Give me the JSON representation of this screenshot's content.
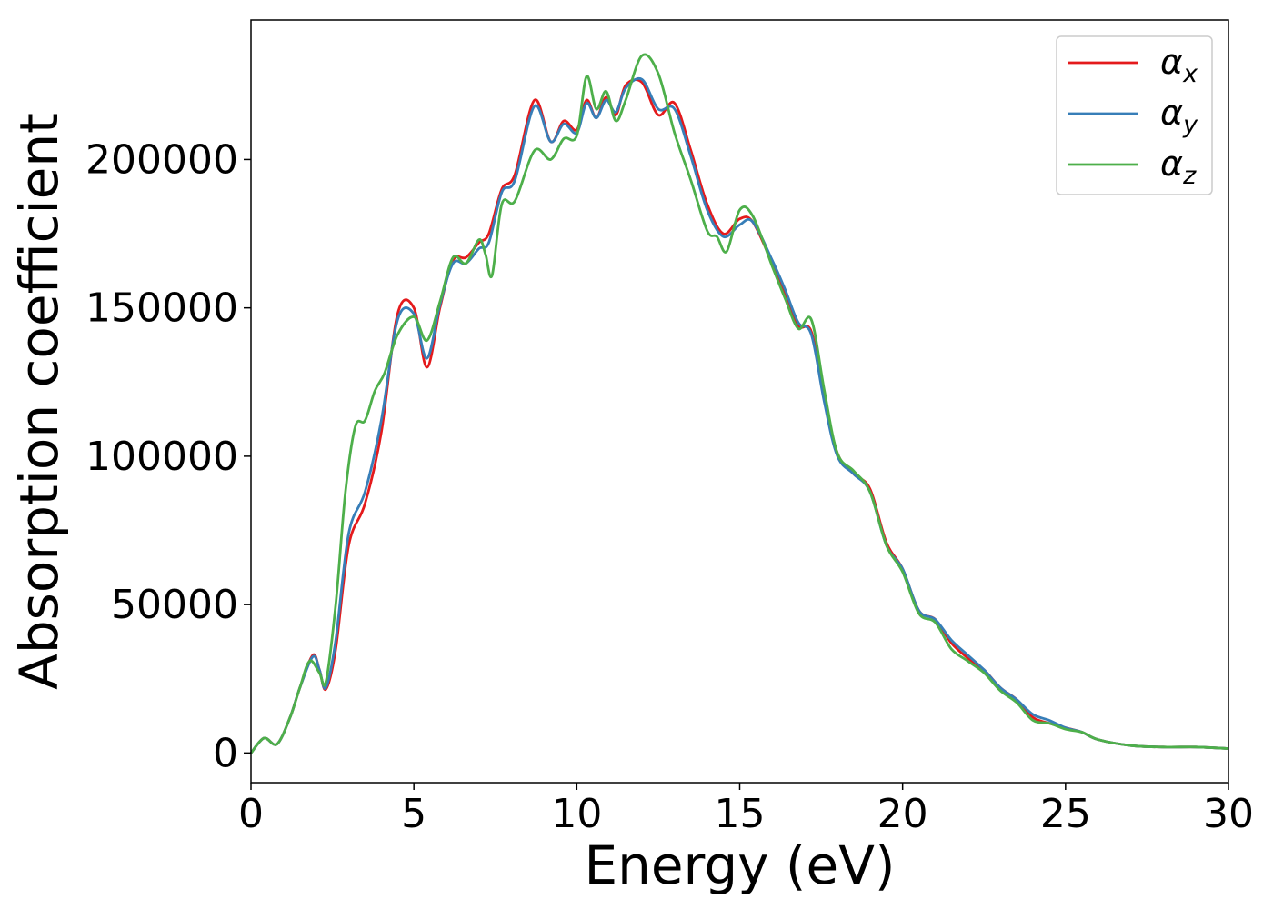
{
  "chart_data": {
    "type": "line",
    "title": "",
    "xlabel": "Energy (eV)",
    "ylabel": "Absorption coefficient",
    "xlim": [
      0,
      30
    ],
    "ylim": [
      -10000,
      247000
    ],
    "xticks": [
      0,
      5,
      10,
      15,
      20,
      25,
      30
    ],
    "yticks": [
      0,
      50000,
      100000,
      150000,
      200000
    ],
    "grid": false,
    "legend_position": "top-right",
    "series": [
      {
        "name": "αx",
        "name_base": "α",
        "name_sub": "x",
        "color": "#e41a1c",
        "x": [
          0,
          0.4,
          0.8,
          1.2,
          1.5,
          1.9,
          2.1,
          2.3,
          2.6,
          3.0,
          3.5,
          4.0,
          4.5,
          5.0,
          5.4,
          5.8,
          6.2,
          6.6,
          7.0,
          7.3,
          7.7,
          8.1,
          8.7,
          9.2,
          9.6,
          10.0,
          10.3,
          10.6,
          10.9,
          11.2,
          11.5,
          12.0,
          12.5,
          13.0,
          13.5,
          14.0,
          14.5,
          15.0,
          15.4,
          16.0,
          16.4,
          16.8,
          17.2,
          17.6,
          18.0,
          18.5,
          19.0,
          19.5,
          20.0,
          20.5,
          21.0,
          21.5,
          22.0,
          22.5,
          23.0,
          23.5,
          24.0,
          24.5,
          25.0,
          25.5,
          26.0,
          27.0,
          28.0,
          29.0,
          30.0
        ],
        "values": [
          0,
          5000,
          3000,
          12000,
          22000,
          33000,
          28000,
          21500,
          35000,
          70000,
          84000,
          108000,
          148000,
          150000,
          130000,
          150000,
          166000,
          167000,
          172000,
          175000,
          190000,
          195000,
          220000,
          206000,
          213000,
          210000,
          220000,
          214000,
          221000,
          215000,
          225000,
          226000,
          215000,
          219000,
          203000,
          185000,
          175000,
          180000,
          179000,
          165000,
          155000,
          144000,
          142000,
          120000,
          101000,
          94000,
          89000,
          71000,
          62000,
          48000,
          45000,
          37000,
          32000,
          28000,
          22000,
          18000,
          12000,
          10000,
          8500,
          7000,
          4500,
          2500,
          2000,
          2000,
          1500
        ]
      },
      {
        "name": "αy",
        "name_base": "α",
        "name_sub": "y",
        "color": "#377eb8",
        "x": [
          0,
          0.4,
          0.8,
          1.2,
          1.5,
          1.9,
          2.1,
          2.3,
          2.6,
          3.0,
          3.5,
          4.0,
          4.5,
          5.0,
          5.4,
          5.8,
          6.2,
          6.6,
          7.0,
          7.3,
          7.7,
          8.1,
          8.7,
          9.2,
          9.6,
          10.0,
          10.3,
          10.6,
          10.9,
          11.2,
          11.5,
          12.0,
          12.5,
          13.0,
          13.5,
          14.0,
          14.5,
          15.0,
          15.4,
          16.0,
          16.4,
          16.8,
          17.2,
          17.6,
          18.0,
          18.5,
          19.0,
          19.5,
          20.0,
          20.5,
          21.0,
          21.5,
          22.0,
          22.5,
          23.0,
          23.5,
          24.0,
          24.5,
          25.0,
          25.5,
          26.0,
          27.0,
          28.0,
          29.0,
          30.0
        ],
        "values": [
          0,
          5000,
          3000,
          12000,
          22000,
          32500,
          28000,
          22000,
          38000,
          74000,
          88000,
          112000,
          146000,
          148000,
          133000,
          151000,
          165000,
          165000,
          170000,
          172000,
          189000,
          193000,
          218000,
          206000,
          212000,
          209000,
          219000,
          214000,
          220000,
          216000,
          224000,
          227000,
          217000,
          217000,
          201000,
          183000,
          174000,
          178000,
          179000,
          166000,
          156000,
          145000,
          141000,
          118000,
          100000,
          94000,
          88000,
          70000,
          62000,
          48000,
          45000,
          38000,
          33000,
          28000,
          22000,
          18000,
          13000,
          11000,
          8500,
          7000,
          4500,
          2500,
          2000,
          2000,
          1500
        ]
      },
      {
        "name": "αz",
        "name_base": "α",
        "name_sub": "z",
        "color": "#4daf4a",
        "x": [
          0,
          0.4,
          0.8,
          1.2,
          1.5,
          1.8,
          2.1,
          2.3,
          2.6,
          2.9,
          3.2,
          3.5,
          3.8,
          4.1,
          4.5,
          5.0,
          5.4,
          5.8,
          6.2,
          6.6,
          7.0,
          7.2,
          7.4,
          7.7,
          8.1,
          8.7,
          9.2,
          9.6,
          10.0,
          10.3,
          10.6,
          10.9,
          11.2,
          11.5,
          12.0,
          12.5,
          13.0,
          13.5,
          14.0,
          14.3,
          14.6,
          15.0,
          15.4,
          16.0,
          16.4,
          16.8,
          17.2,
          17.6,
          18.0,
          18.5,
          19.0,
          19.5,
          20.0,
          20.5,
          21.0,
          21.5,
          22.0,
          22.5,
          23.0,
          23.5,
          24.0,
          24.5,
          25.0,
          25.5,
          26.0,
          27.0,
          28.0,
          29.0,
          30.0
        ],
        "values": [
          0,
          5000,
          3000,
          12000,
          22000,
          31000,
          27000,
          24000,
          50000,
          88000,
          110000,
          112000,
          122000,
          128000,
          141000,
          147000,
          139000,
          152000,
          167000,
          165000,
          173000,
          168000,
          161000,
          185000,
          186000,
          203000,
          200000,
          207000,
          208000,
          228000,
          217000,
          223000,
          213000,
          220000,
          235000,
          229000,
          209000,
          193000,
          176000,
          174000,
          169000,
          183000,
          181000,
          164000,
          153000,
          143000,
          146000,
          122000,
          101000,
          95000,
          88000,
          70000,
          61000,
          47000,
          44000,
          35000,
          31000,
          27000,
          21000,
          17000,
          11000,
          10000,
          8000,
          7000,
          4500,
          2500,
          2000,
          2000,
          1500
        ]
      }
    ]
  }
}
